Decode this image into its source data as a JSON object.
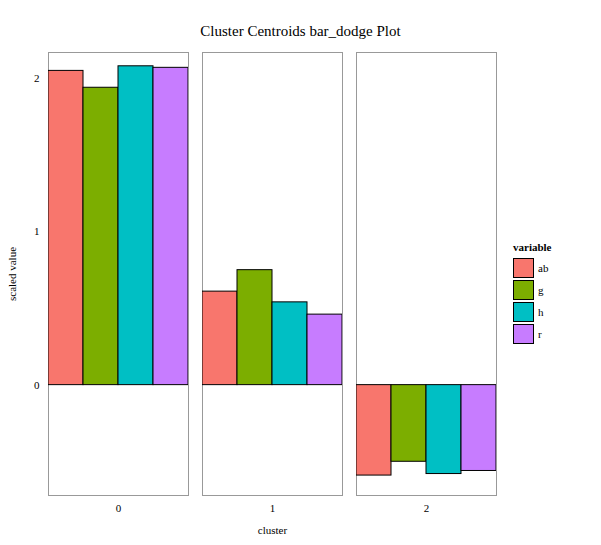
{
  "chart_data": {
    "type": "bar",
    "title": "Cluster Centroids bar_dodge Plot",
    "x_label": "cluster",
    "y_label": "scaled value",
    "legend_title": "variable",
    "categories": [
      "0",
      "1",
      "2"
    ],
    "series": [
      {
        "name": "ab",
        "color": "#F8766D",
        "values": [
          2.05,
          0.61,
          -0.59
        ]
      },
      {
        "name": "g",
        "color": "#7CAE00",
        "values": [
          1.94,
          0.75,
          -0.5
        ]
      },
      {
        "name": "h",
        "color": "#00BFC4",
        "values": [
          2.08,
          0.54,
          -0.58
        ]
      },
      {
        "name": "r",
        "color": "#C77CFF",
        "values": [
          2.07,
          0.46,
          -0.56
        ]
      }
    ],
    "ylim": [
      -0.72,
      2.17
    ],
    "yticks": [
      0,
      1,
      2
    ],
    "grid": false,
    "legend": "right"
  }
}
